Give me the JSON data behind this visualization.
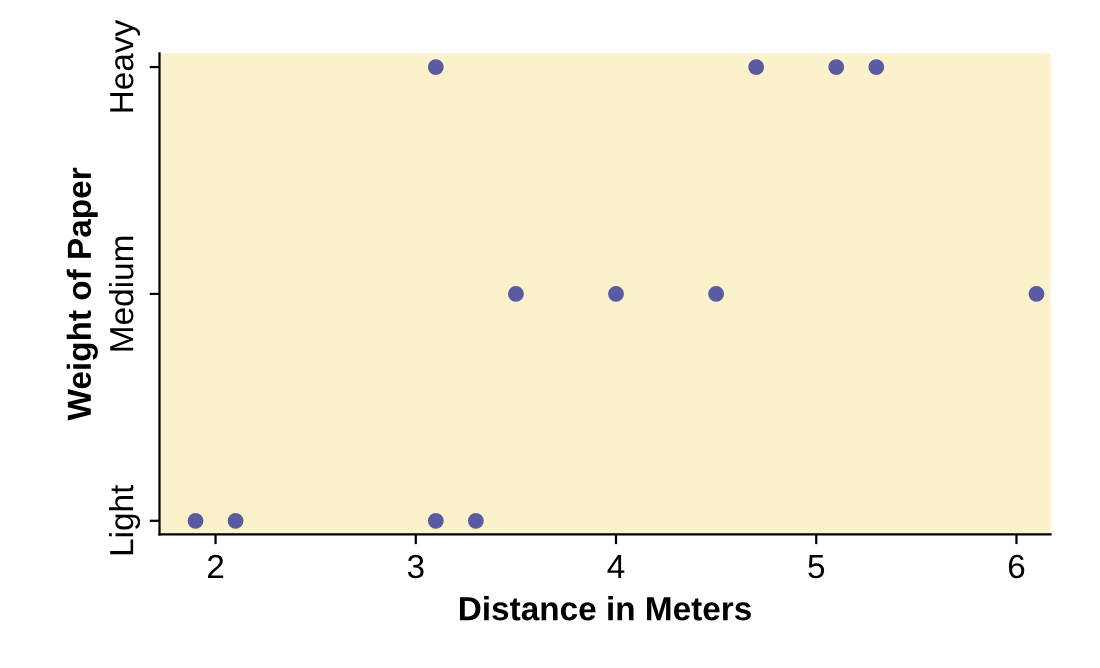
{
  "chart_data": {
    "type": "scatter",
    "orientation": "horizontal",
    "xlabel": "Distance in Meters",
    "ylabel": "Weight of Paper",
    "categories": [
      "Heavy",
      "Medium",
      "Light"
    ],
    "series": [
      {
        "color": "#5b5ba3",
        "values": [
          3.1,
          3.5,
          1.9
        ]
      },
      {
        "color": "#5b5ba3",
        "values": [
          4.7,
          4.0,
          2.1
        ]
      },
      {
        "color": "#5b5ba3",
        "values": [
          5.1,
          4.5,
          3.1
        ]
      },
      {
        "color": "#5b5ba3",
        "values": [
          5.3,
          6.1,
          3.3
        ]
      }
    ],
    "xlim": [
      1.72,
      6.17
    ],
    "xticks": [
      2,
      3,
      4,
      5,
      6
    ],
    "marker": "circle",
    "grid": false,
    "legend": false
  }
}
